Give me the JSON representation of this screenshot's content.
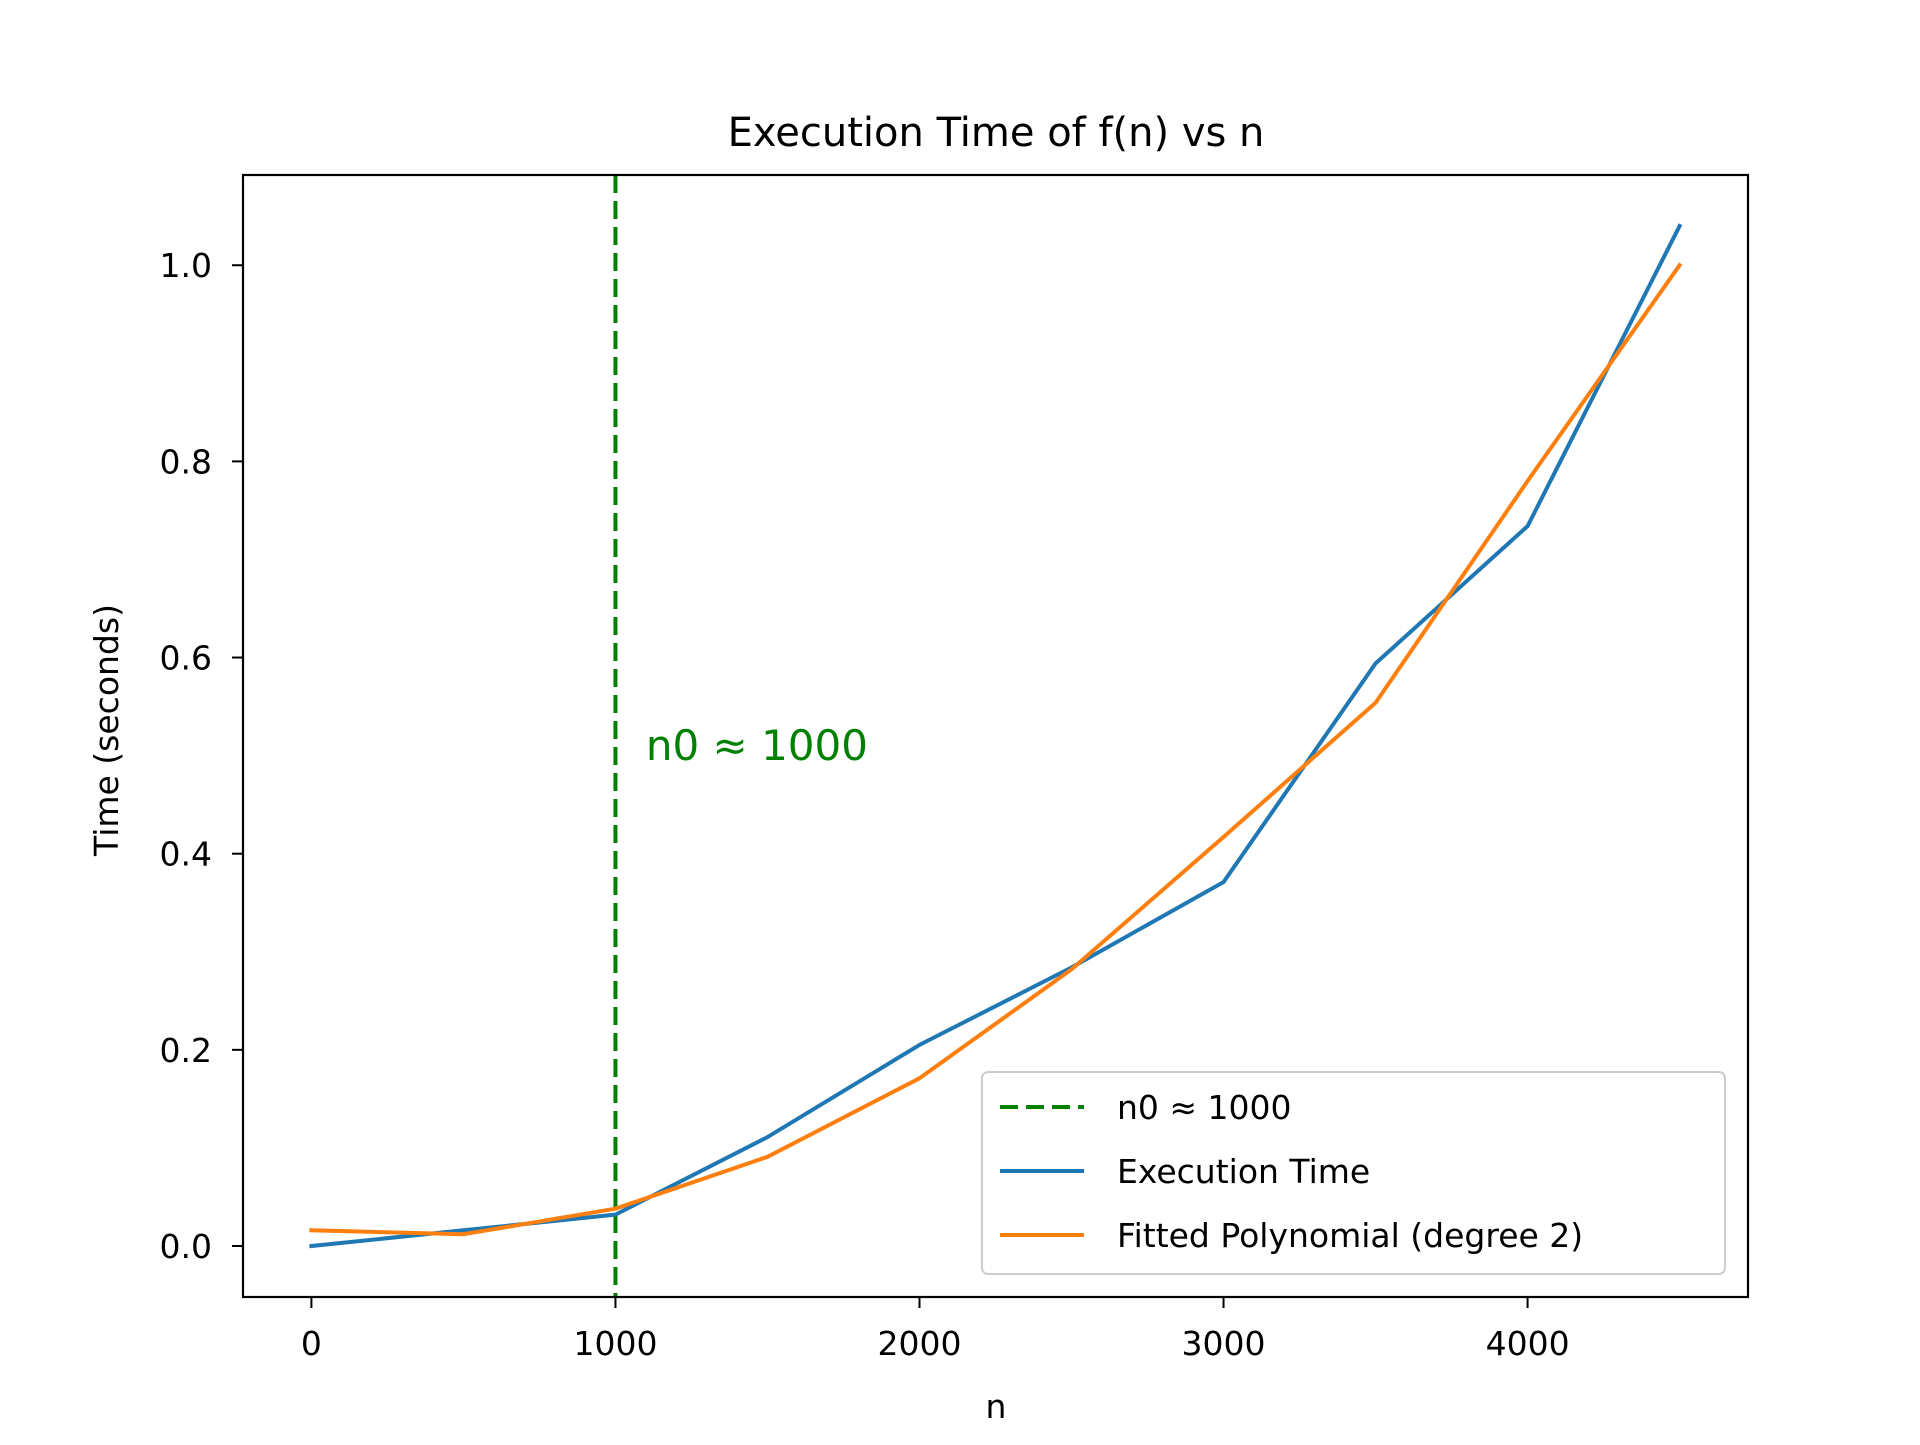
{
  "chart_data": {
    "type": "line",
    "title": "Execution Time of f(n) vs n",
    "xlabel": "n",
    "ylabel": "Time (seconds)",
    "xlim": [
      -225,
      4725
    ],
    "ylim": [
      -0.052,
      1.092
    ],
    "xticks": [
      0,
      1000,
      2000,
      3000,
      4000
    ],
    "yticks": [
      0.0,
      0.2,
      0.4,
      0.6,
      0.8,
      1.0
    ],
    "xtick_labels": [
      "0",
      "1000",
      "2000",
      "3000",
      "4000"
    ],
    "ytick_labels": [
      "0.0",
      "0.2",
      "0.4",
      "0.6",
      "0.8",
      "1.0"
    ],
    "grid": false,
    "series": [
      {
        "name": "Execution Time",
        "color": "#1f77b4",
        "style": "solid",
        "x": [
          0,
          500,
          1000,
          1500,
          2000,
          2500,
          3000,
          3500,
          4000,
          4500
        ],
        "y": [
          0.0,
          0.016,
          0.032,
          0.111,
          0.205,
          0.284,
          0.371,
          0.594,
          0.734,
          1.04
        ]
      },
      {
        "name": "Fitted Polynomial (degree 2)",
        "color": "#ff7f0e",
        "style": "solid",
        "x": [
          0,
          500,
          1000,
          1500,
          2000,
          2500,
          3000,
          3500,
          4000,
          4500
        ],
        "y": [
          0.016,
          0.012,
          0.038,
          0.091,
          0.171,
          0.282,
          0.417,
          0.554,
          0.78,
          1.0
        ]
      }
    ],
    "vlines": [
      {
        "name": "n0 ≈ 1000",
        "x": 1000,
        "color": "#008000",
        "style": "dashed"
      }
    ],
    "annotations": [
      {
        "text": "n0 ≈ 1000",
        "x": 1100,
        "y": 0.51,
        "color": "#008000"
      }
    ],
    "legend": {
      "position": "lower right",
      "entries": [
        {
          "label": "n0 ≈ 1000",
          "color": "#008000",
          "style": "dashed"
        },
        {
          "label": "Execution Time",
          "color": "#1f77b4",
          "style": "solid"
        },
        {
          "label": "Fitted Polynomial (degree 2)",
          "color": "#ff7f0e",
          "style": "solid"
        }
      ]
    }
  }
}
